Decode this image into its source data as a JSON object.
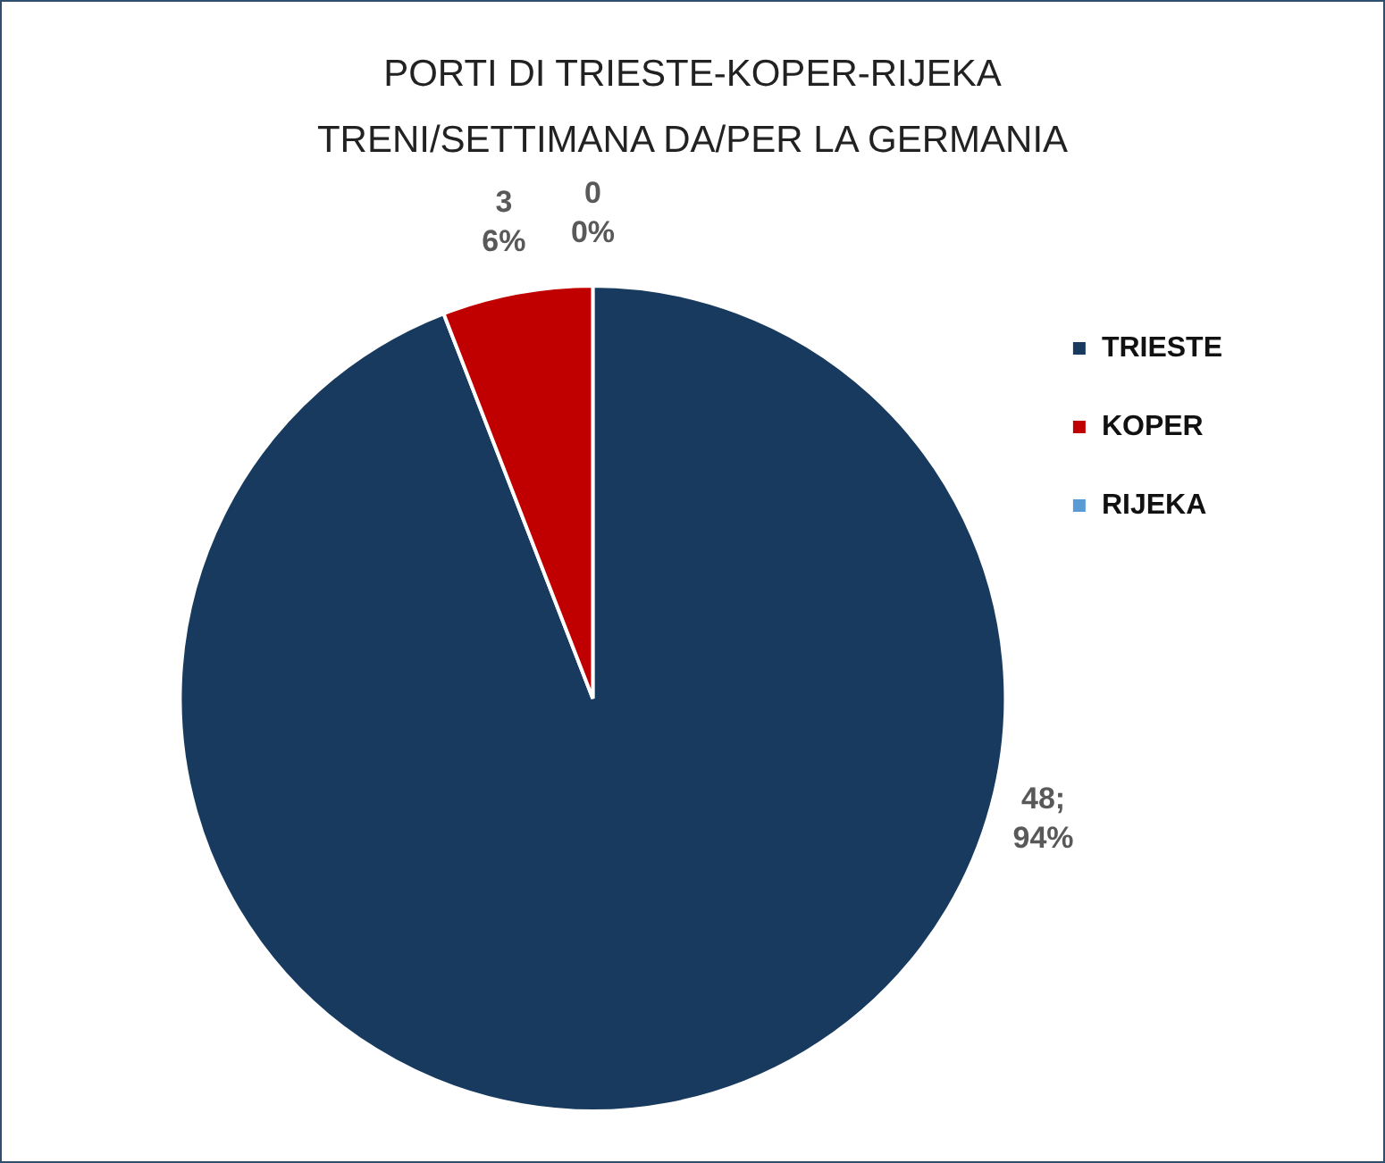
{
  "chart_data": {
    "type": "pie",
    "title": "PORTI DI TRIESTE-KOPER-RIJEKA\nTRENI/SETTIMANA DA/PER LA GERMANIA",
    "categories": [
      "TRIESTE",
      "KOPER",
      "RIJEKA"
    ],
    "values": [
      48,
      3,
      0
    ],
    "colors": [
      "#173a5e",
      "#c00000",
      "#5b9bd5"
    ],
    "value_labels": [
      "48;\n94%",
      "3\n6%",
      "0\n0%"
    ],
    "legend": "right"
  }
}
